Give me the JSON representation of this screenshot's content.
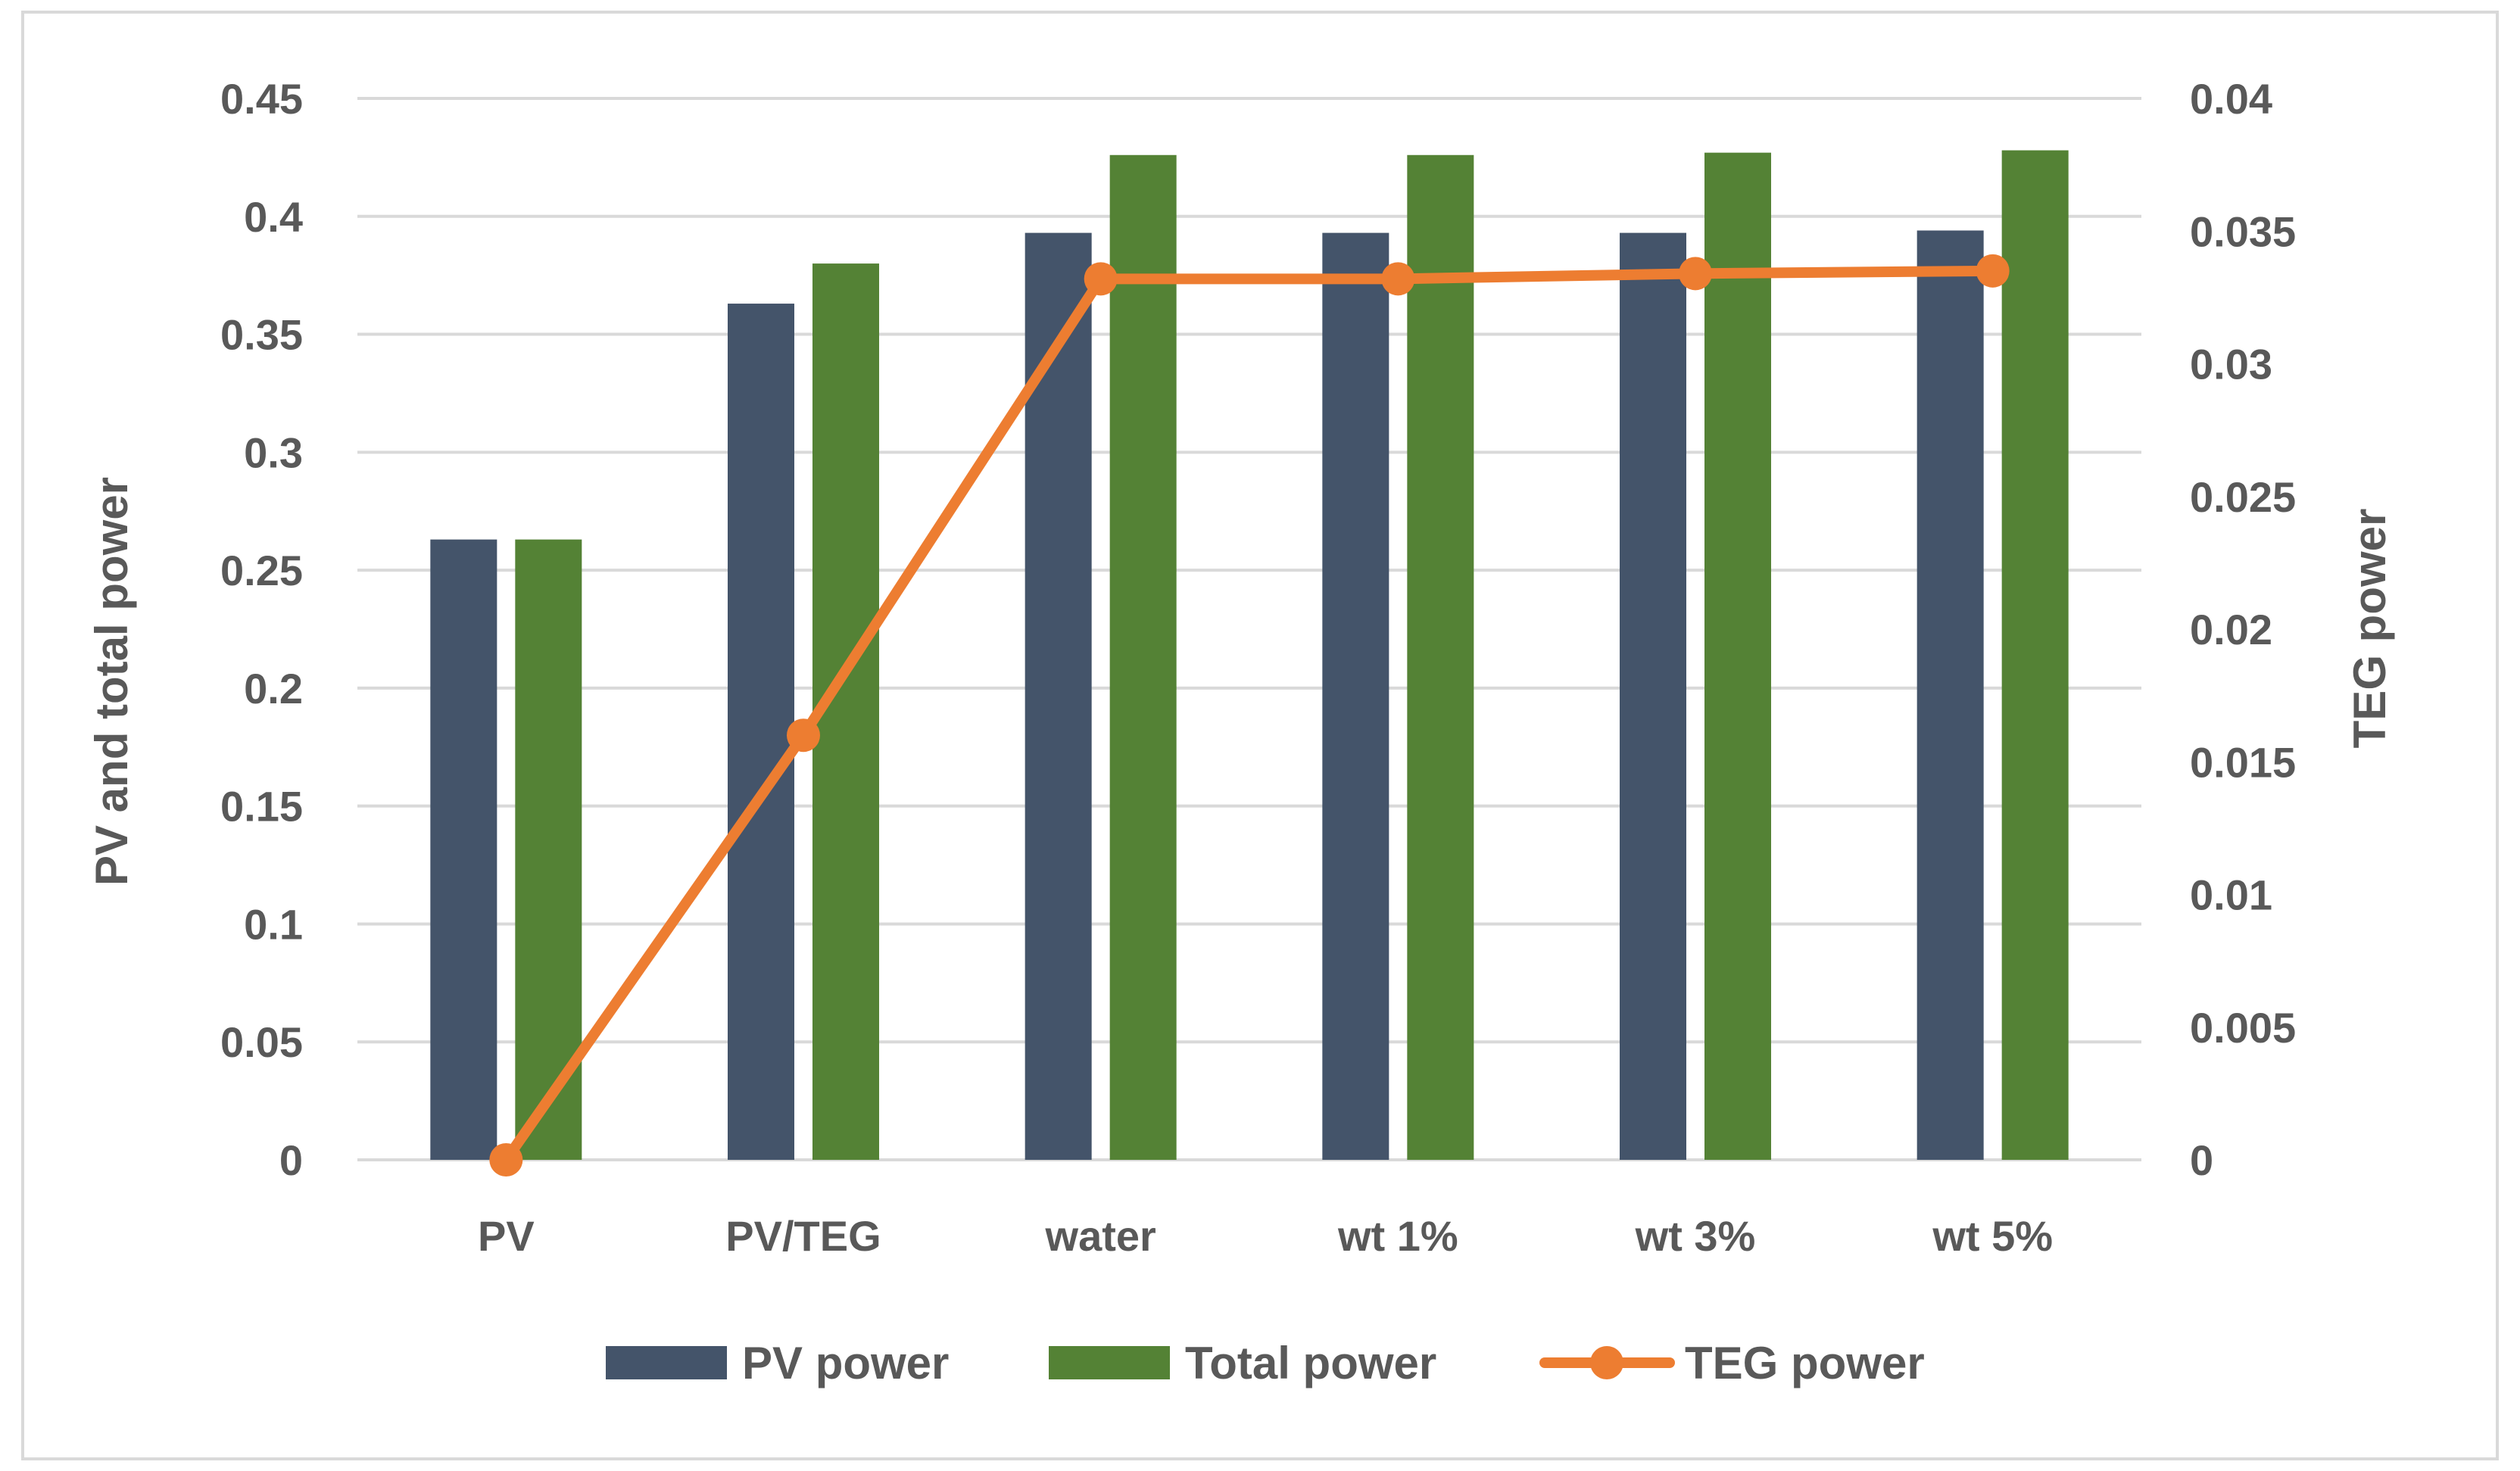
{
  "chart_data": {
    "type": "bar",
    "categories": [
      "PV",
      "PV/TEG",
      "water",
      "wt 1%",
      "wt 3%",
      "wt 5%"
    ],
    "series": [
      {
        "name": "PV power",
        "kind": "bar",
        "axis": "left",
        "color": "#44546a",
        "values": [
          0.263,
          0.363,
          0.393,
          0.393,
          0.393,
          0.394
        ]
      },
      {
        "name": "Total power",
        "kind": "bar",
        "axis": "left",
        "color": "#548235",
        "values": [
          0.263,
          0.38,
          0.426,
          0.426,
          0.427,
          0.428
        ]
      },
      {
        "name": "TEG power",
        "kind": "line",
        "axis": "right",
        "color": "#ed7d31",
        "values": [
          0.0,
          0.016,
          0.0332,
          0.0332,
          0.0334,
          0.0335
        ]
      }
    ],
    "ylabel": "PV and total power",
    "y2label": "TEG power",
    "ylim": [
      0,
      0.45
    ],
    "y2lim": [
      0,
      0.04
    ],
    "yticks": [
      "0",
      "0.05",
      "0.1",
      "0.15",
      "0.2",
      "0.25",
      "0.3",
      "0.35",
      "0.4",
      "0.45"
    ],
    "y2ticks": [
      "0",
      "0.005",
      "0.01",
      "0.015",
      "0.02",
      "0.025",
      "0.03",
      "0.035",
      "0.04"
    ],
    "grid": true,
    "legend_position": "bottom"
  }
}
